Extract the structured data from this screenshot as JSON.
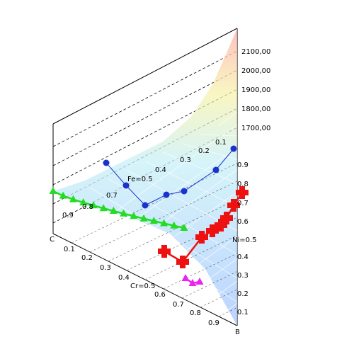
{
  "chart_data": {
    "type": "ternary-3d-surface",
    "z_axis": {
      "tick_labels": [
        "1700,00",
        "1800,00",
        "1900,00",
        "2000,00",
        "2100,00"
      ]
    },
    "axes": {
      "left_front_label": "C",
      "bottom_right_label": "B",
      "left_front_ticks": [
        "0.1",
        "0.2",
        "0.3",
        "0.4",
        "0.6",
        "0.7",
        "0.8",
        "0.9"
      ],
      "left_front_mid_label": "Cr=0.5",
      "left_back_tick": "0.9",
      "right_ticks": [
        "0.9",
        "0.8",
        "0.7",
        "0.6",
        "0.4",
        "0.3",
        "0.2",
        "0.1"
      ],
      "right_mid_label": "Ni=0.5",
      "back_ticks": [
        "0.1",
        "0.2",
        "0.3",
        "0.4",
        "0.7",
        "0.8"
      ],
      "back_mid_label": "Fe=0.5"
    },
    "series": [
      {
        "marker": "triangle",
        "color": "#22dd22",
        "points": [
          [
            0.0,
            1.0,
            1660
          ],
          [
            0.06,
            0.94,
            1625
          ],
          [
            0.12,
            0.88,
            1600
          ],
          [
            0.18,
            0.82,
            1580
          ],
          [
            0.24,
            0.76,
            1560
          ],
          [
            0.3,
            0.7,
            1545
          ],
          [
            0.37,
            0.63,
            1530
          ],
          [
            0.44,
            0.56,
            1515
          ],
          [
            0.52,
            0.48,
            1505
          ],
          [
            0.6,
            0.4,
            1495
          ],
          [
            0.68,
            0.32,
            1485
          ],
          [
            0.76,
            0.24,
            1478
          ],
          [
            0.84,
            0.16,
            1470
          ],
          [
            0.92,
            0.08,
            1465
          ]
        ]
      },
      {
        "marker": "circle",
        "color": "#1a33cc",
        "points": [
          [
            0.1,
            0.0,
            1700
          ],
          [
            0.25,
            0.1,
            1620
          ],
          [
            0.4,
            0.25,
            1580
          ],
          [
            0.55,
            0.3,
            1600
          ],
          [
            0.7,
            0.28,
            1640
          ],
          [
            0.82,
            0.2,
            1620
          ],
          [
            0.9,
            0.1,
            1560
          ]
        ]
      },
      {
        "marker": "cross",
        "color": "#ee1111",
        "points": [
          [
            0.5,
            0.0,
            1420
          ],
          [
            0.6,
            0.02,
            1440
          ],
          [
            0.7,
            0.04,
            1470
          ],
          [
            0.8,
            0.06,
            1500
          ],
          [
            0.88,
            0.08,
            1540
          ],
          [
            0.94,
            0.1,
            1580
          ],
          [
            0.98,
            0.12,
            1620
          ],
          [
            1.0,
            0.16,
            1660
          ]
        ]
      },
      {
        "marker": "triangle",
        "color": "#ee22ee",
        "points": [
          [
            0.58,
            0.0,
            1380
          ],
          [
            0.64,
            0.0,
            1385
          ],
          [
            0.7,
            0.0,
            1390
          ]
        ]
      }
    ],
    "grid": true,
    "surface": "colormap"
  }
}
